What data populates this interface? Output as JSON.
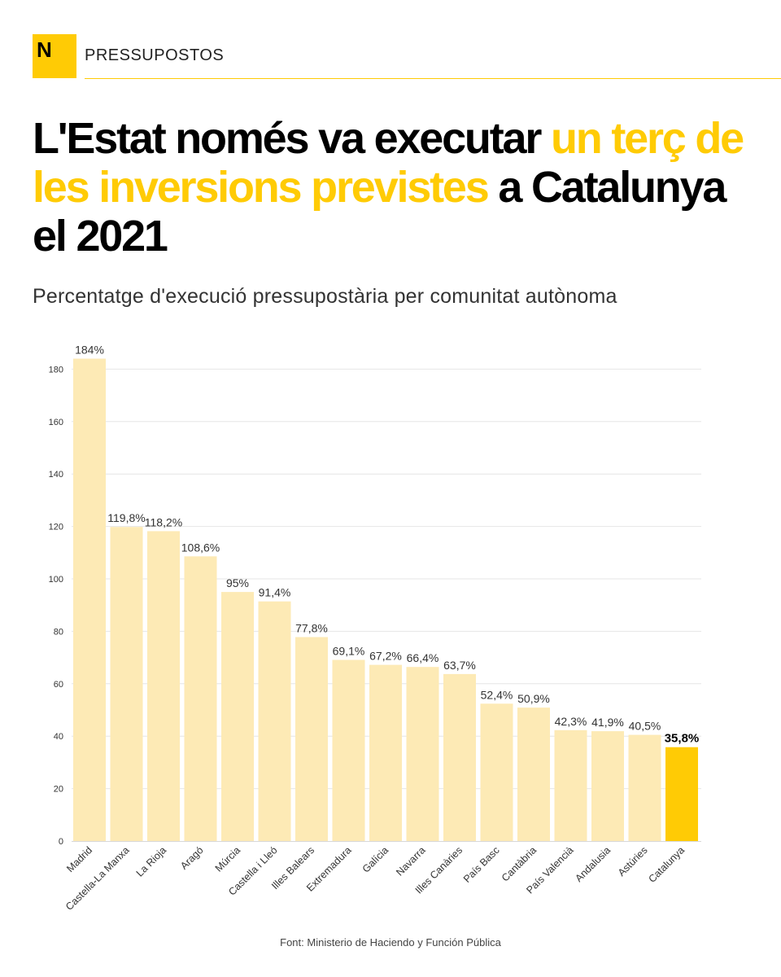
{
  "header": {
    "logo_letter": "N",
    "section": "PRESSUPOSTOS"
  },
  "title": {
    "part1": "L'Estat només va executar ",
    "highlight": "un terç de les inversions previstes",
    "part2": " a Catalunya el 2021"
  },
  "subtitle": "Percentatge d'execució pressupostària per comunitat autònoma",
  "source": "Font: Ministerio de Haciendo y Función Pública",
  "colors": {
    "accent": "#ffcb05",
    "bar": "#fdeab5",
    "bar_highlight": "#ffcb05",
    "gridline": "#e6e6e6"
  },
  "chart_data": {
    "type": "bar",
    "title": "",
    "xlabel": "",
    "ylabel": "",
    "ylim": [
      0,
      190
    ],
    "yticks": [
      0,
      20,
      40,
      60,
      80,
      100,
      120,
      140,
      160,
      180
    ],
    "grid": true,
    "categories": [
      "Madrid",
      "Castella-La Manxa",
      "La Rioja",
      "Aragó",
      "Múrcia",
      "Castella i Lleó",
      "Illes Balears",
      "Extremadura",
      "Galícia",
      "Navarra",
      "Illes Canàries",
      "País Basc",
      "Cantàbria",
      "País Valencià",
      "Andalusia",
      "Astúries",
      "Catalunya"
    ],
    "values": [
      184,
      119.8,
      118.2,
      108.6,
      95,
      91.4,
      77.8,
      69.1,
      67.2,
      66.4,
      63.7,
      52.4,
      50.9,
      42.3,
      41.9,
      40.5,
      35.8
    ],
    "labels": [
      "184%",
      "119,8%",
      "118,2%",
      "108,6%",
      "95%",
      "91,4%",
      "77,8%",
      "69,1%",
      "67,2%",
      "66,4%",
      "63,7%",
      "52,4%",
      "50,9%",
      "42,3%",
      "41,9%",
      "40,5%",
      "35,8%"
    ],
    "highlight": "Catalunya"
  }
}
